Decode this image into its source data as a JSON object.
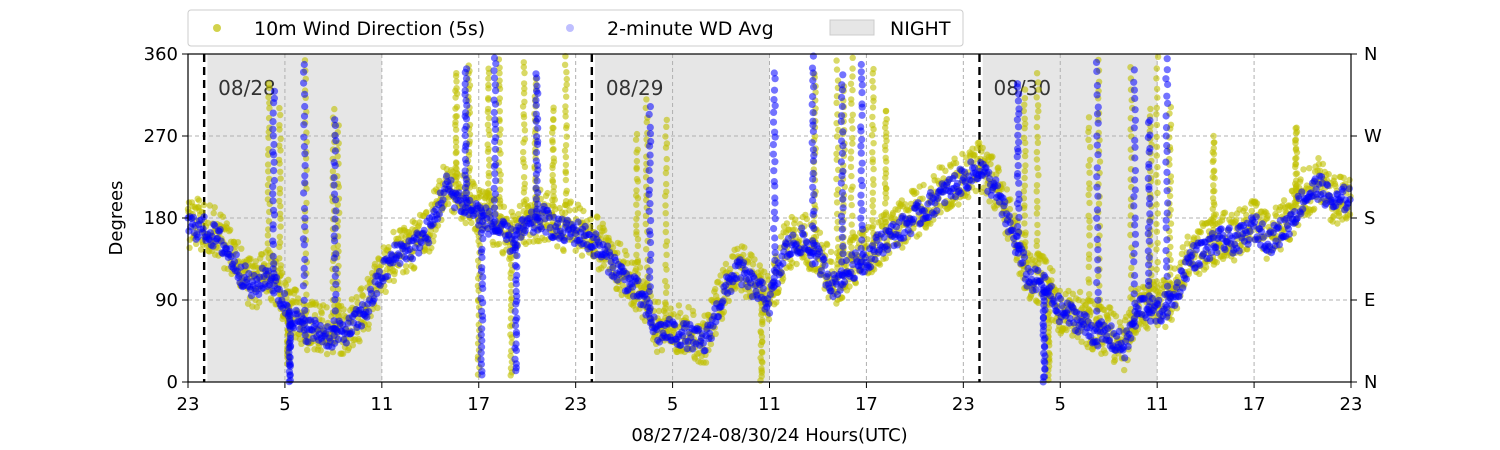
{
  "chart_data": {
    "type": "scatter",
    "xlabel": "08/27/24-08/30/24  Hours(UTC)",
    "ylabel": "Degrees",
    "xlim": [
      0,
      72
    ],
    "ylim": [
      0,
      360
    ],
    "x_ticks": [
      {
        "x": 0,
        "label": "23"
      },
      {
        "x": 6,
        "label": "5"
      },
      {
        "x": 12,
        "label": "11"
      },
      {
        "x": 18,
        "label": "17"
      },
      {
        "x": 24,
        "label": "23"
      },
      {
        "x": 30,
        "label": "5"
      },
      {
        "x": 36,
        "label": "11"
      },
      {
        "x": 42,
        "label": "17"
      },
      {
        "x": 48,
        "label": "23"
      },
      {
        "x": 54,
        "label": "5"
      },
      {
        "x": 60,
        "label": "11"
      },
      {
        "x": 66,
        "label": "17"
      },
      {
        "x": 72,
        "label": "23"
      }
    ],
    "y_ticks": [
      0,
      90,
      180,
      270,
      360
    ],
    "y2_ticks": [
      {
        "y": 0,
        "label": "N"
      },
      {
        "y": 90,
        "label": "E"
      },
      {
        "y": 180,
        "label": "S"
      },
      {
        "y": 270,
        "label": "W"
      },
      {
        "y": 360,
        "label": "N"
      }
    ],
    "grid": true,
    "legend_position": "top",
    "night_periods": [
      [
        1.2,
        12.0
      ],
      [
        25.2,
        36.0
      ],
      [
        49.2,
        60.0
      ]
    ],
    "day_markers": [
      {
        "x": 1.0,
        "label": "08/28"
      },
      {
        "x": 25.0,
        "label": "08/29"
      },
      {
        "x": 49.0,
        "label": "08/30"
      }
    ],
    "colors": {
      "wd_5s": "#bfbf00",
      "wd_2min": "#0000ff",
      "night": "#e6e6e6"
    },
    "series": [
      {
        "name": "10m Wind Direction (5s)",
        "kind": "5s",
        "trend": [
          [
            0,
            175
          ],
          [
            1,
            172
          ],
          [
            2,
            160
          ],
          [
            3,
            130
          ],
          [
            4,
            105
          ],
          [
            5,
            120
          ],
          [
            6,
            90
          ],
          [
            7,
            65
          ],
          [
            8,
            60
          ],
          [
            9,
            55
          ],
          [
            10,
            60
          ],
          [
            11,
            80
          ],
          [
            12,
            120
          ],
          [
            13,
            145
          ],
          [
            14,
            150
          ],
          [
            15,
            170
          ],
          [
            16,
            220
          ],
          [
            17,
            200
          ],
          [
            18,
            190
          ],
          [
            19,
            175
          ],
          [
            20,
            160
          ],
          [
            21,
            175
          ],
          [
            22,
            185
          ],
          [
            23,
            170
          ],
          [
            24,
            170
          ],
          [
            25,
            160
          ],
          [
            26,
            140
          ],
          [
            27,
            120
          ],
          [
            28,
            100
          ],
          [
            29,
            60
          ],
          [
            30,
            60
          ],
          [
            31,
            55
          ],
          [
            32,
            45
          ],
          [
            33,
            95
          ],
          [
            34,
            130
          ],
          [
            35,
            110
          ],
          [
            36,
            90
          ],
          [
            37,
            150
          ],
          [
            38,
            160
          ],
          [
            39,
            140
          ],
          [
            40,
            110
          ],
          [
            41,
            130
          ],
          [
            42,
            140
          ],
          [
            43,
            160
          ],
          [
            44,
            170
          ],
          [
            45,
            185
          ],
          [
            46,
            200
          ],
          [
            47,
            215
          ],
          [
            48,
            225
          ],
          [
            49,
            240
          ],
          [
            50,
            215
          ],
          [
            51,
            170
          ],
          [
            52,
            120
          ],
          [
            53,
            110
          ],
          [
            54,
            80
          ],
          [
            55,
            75
          ],
          [
            56,
            60
          ],
          [
            57,
            55
          ],
          [
            58,
            40
          ],
          [
            59,
            90
          ],
          [
            60,
            80
          ],
          [
            61,
            95
          ],
          [
            62,
            140
          ],
          [
            63,
            150
          ],
          [
            64,
            160
          ],
          [
            65,
            160
          ],
          [
            66,
            175
          ],
          [
            67,
            160
          ],
          [
            68,
            175
          ],
          [
            69,
            205
          ],
          [
            70,
            220
          ],
          [
            71,
            200
          ],
          [
            72,
            210
          ]
        ],
        "spikes": [
          [
            5.0,
            330
          ],
          [
            5.7,
            300
          ],
          [
            6.2,
            20
          ],
          [
            7.3,
            355
          ],
          [
            9.0,
            300
          ],
          [
            9.3,
            280
          ],
          [
            16.6,
            340
          ],
          [
            17.4,
            350
          ],
          [
            18.0,
            10
          ],
          [
            18.6,
            345
          ],
          [
            19.3,
            355
          ],
          [
            20.0,
            5
          ],
          [
            20.8,
            350
          ],
          [
            21.5,
            330
          ],
          [
            22.6,
            300
          ],
          [
            23.4,
            355
          ],
          [
            27.8,
            270
          ],
          [
            28.4,
            310
          ],
          [
            29.6,
            290
          ],
          [
            35.5,
            0
          ],
          [
            38.8,
            340
          ],
          [
            40.2,
            350
          ],
          [
            40.6,
            325
          ],
          [
            41.1,
            355
          ],
          [
            42.4,
            345
          ],
          [
            43.2,
            300
          ],
          [
            51.8,
            320
          ],
          [
            52.6,
            340
          ],
          [
            53.3,
            5
          ],
          [
            55.8,
            290
          ],
          [
            56.4,
            355
          ],
          [
            58.4,
            345
          ],
          [
            59.6,
            300
          ],
          [
            60.0,
            355
          ],
          [
            60.8,
            300
          ],
          [
            63.5,
            270
          ],
          [
            68.6,
            280
          ]
        ]
      },
      {
        "name": "2-minute WD Avg",
        "kind": "avg",
        "trend": [
          [
            0,
            172
          ],
          [
            1,
            168
          ],
          [
            2,
            155
          ],
          [
            3,
            128
          ],
          [
            4,
            102
          ],
          [
            5,
            118
          ],
          [
            6,
            85
          ],
          [
            7,
            60
          ],
          [
            8,
            55
          ],
          [
            9,
            50
          ],
          [
            10,
            58
          ],
          [
            11,
            78
          ],
          [
            12,
            118
          ],
          [
            13,
            143
          ],
          [
            14,
            148
          ],
          [
            15,
            168
          ],
          [
            16,
            215
          ],
          [
            17,
            195
          ],
          [
            18,
            185
          ],
          [
            19,
            170
          ],
          [
            20,
            155
          ],
          [
            21,
            170
          ],
          [
            22,
            180
          ],
          [
            23,
            165
          ],
          [
            24,
            165
          ],
          [
            25,
            155
          ],
          [
            26,
            135
          ],
          [
            27,
            115
          ],
          [
            28,
            95
          ],
          [
            29,
            55
          ],
          [
            30,
            55
          ],
          [
            31,
            50
          ],
          [
            32,
            42
          ],
          [
            33,
            90
          ],
          [
            34,
            125
          ],
          [
            35,
            105
          ],
          [
            36,
            88
          ],
          [
            37,
            145
          ],
          [
            38,
            155
          ],
          [
            39,
            135
          ],
          [
            40,
            105
          ],
          [
            41,
            125
          ],
          [
            42,
            135
          ],
          [
            43,
            155
          ],
          [
            44,
            165
          ],
          [
            45,
            180
          ],
          [
            46,
            195
          ],
          [
            47,
            210
          ],
          [
            48,
            222
          ],
          [
            49,
            235
          ],
          [
            50,
            210
          ],
          [
            51,
            165
          ],
          [
            52,
            115
          ],
          [
            53,
            105
          ],
          [
            54,
            78
          ],
          [
            55,
            70
          ],
          [
            56,
            55
          ],
          [
            57,
            50
          ],
          [
            58,
            38
          ],
          [
            59,
            85
          ],
          [
            60,
            75
          ],
          [
            61,
            90
          ],
          [
            62,
            135
          ],
          [
            63,
            145
          ],
          [
            64,
            155
          ],
          [
            65,
            155
          ],
          [
            66,
            170
          ],
          [
            67,
            155
          ],
          [
            68,
            170
          ],
          [
            69,
            200
          ],
          [
            70,
            215
          ],
          [
            71,
            195
          ],
          [
            72,
            205
          ]
        ],
        "spikes": [
          [
            5.3,
            320
          ],
          [
            6.3,
            0
          ],
          [
            7.2,
            350
          ],
          [
            9.1,
            290
          ],
          [
            17.2,
            345
          ],
          [
            18.2,
            5
          ],
          [
            19.0,
            355
          ],
          [
            20.3,
            10
          ],
          [
            21.6,
            340
          ],
          [
            28.6,
            300
          ],
          [
            36.3,
            340
          ],
          [
            38.7,
            355
          ],
          [
            40.5,
            335
          ],
          [
            41.7,
            350
          ],
          [
            51.4,
            330
          ],
          [
            53.0,
            0
          ],
          [
            56.3,
            350
          ],
          [
            58.6,
            340
          ],
          [
            59.5,
            290
          ],
          [
            60.6,
            355
          ]
        ]
      }
    ]
  }
}
